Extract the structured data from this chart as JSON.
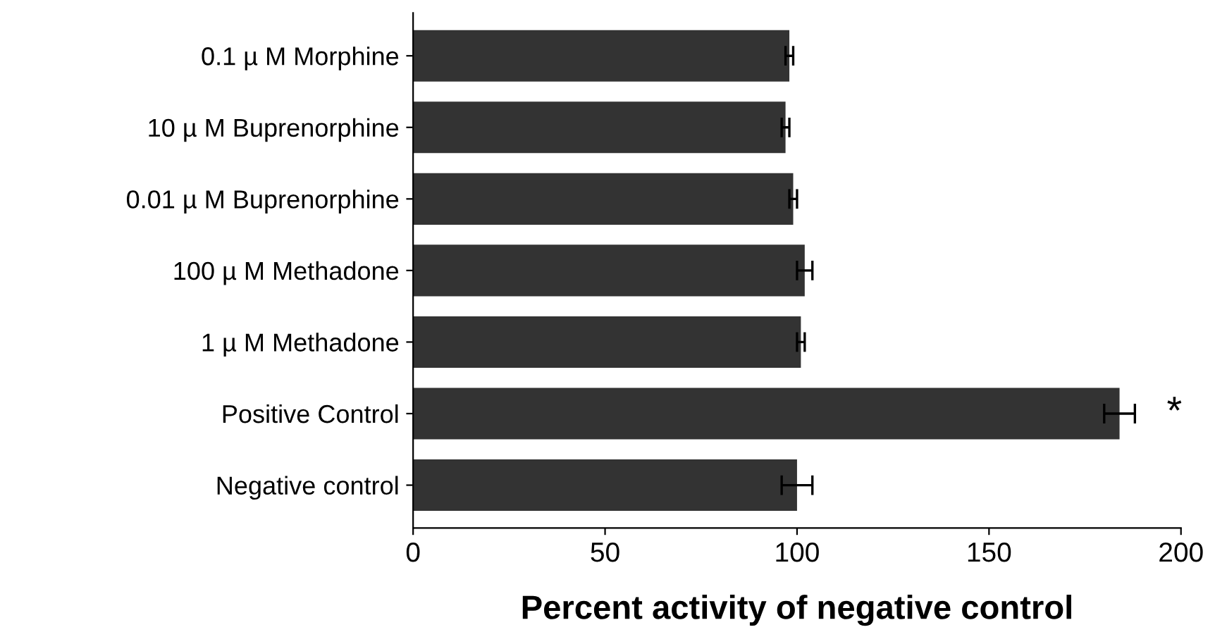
{
  "chart_data": {
    "type": "bar",
    "orientation": "horizontal",
    "xlabel": "Percent activity of negative control",
    "categories": [
      "0.1 µ M Morphine",
      "10 µ M Buprenorphine",
      "0.01 µ M Buprenorphine",
      "100 µ M Methadone",
      "1 µ M Methadone",
      "Positive Control",
      "Negative control"
    ],
    "values": [
      98,
      97,
      99,
      102,
      101,
      184,
      100
    ],
    "errors": [
      1,
      1,
      1,
      2,
      1,
      4,
      4
    ],
    "color": "#333333",
    "xlim": [
      0,
      200
    ],
    "xticks": [
      0,
      50,
      100,
      150,
      200
    ],
    "grid": false,
    "annotations": [
      {
        "text": "*",
        "x": 184,
        "y": "Positive Control"
      }
    ]
  }
}
